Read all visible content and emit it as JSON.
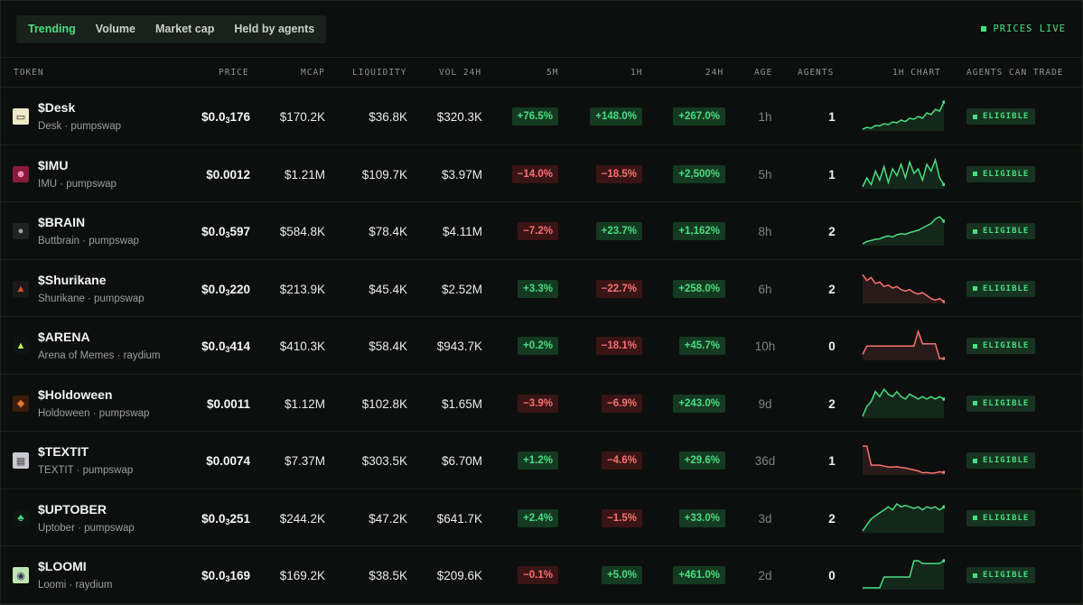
{
  "tabs": [
    "Trending",
    "Volume",
    "Market cap",
    "Held by agents"
  ],
  "active_tab": "Trending",
  "live_label": "PRICES LIVE",
  "columns": [
    "TOKEN",
    "PRICE",
    "MCAP",
    "LIQUIDITY",
    "VOL 24H",
    "5M",
    "1H",
    "24H",
    "AGE",
    "AGENTS",
    "1H CHART",
    "AGENTS CAN TRADE"
  ],
  "colors": {
    "positive": "#4ade80",
    "negative": "#f87171",
    "accent": "#4ade80"
  },
  "rows": [
    {
      "name": "$Desk",
      "sub": "Desk · pumpswap",
      "price_main": "$0.0",
      "price_sub": "3",
      "price_tail": "176",
      "mcap": "$170.2K",
      "liq": "$36.8K",
      "vol": "$320.3K",
      "m5": "+76.5%",
      "h1": "+148.0%",
      "h24": "+267.0%",
      "age": "1h",
      "agents": "1",
      "status": "ELIGIBLE",
      "icon": "monitor-icon",
      "trend": "up",
      "spark": [
        3,
        4,
        3.5,
        5,
        4.8,
        6,
        5.5,
        7,
        6.5,
        8,
        7.2,
        9,
        8.5,
        10,
        9,
        12,
        11,
        14,
        13,
        18
      ]
    },
    {
      "name": "$IMU",
      "sub": "IMU · pumpswap",
      "price_main": "$0.0012",
      "price_sub": "",
      "price_tail": "",
      "mcap": "$1.21M",
      "liq": "$109.7K",
      "vol": "$3.97M",
      "m5": "−14.0%",
      "h1": "−18.5%",
      "h24": "+2,500%",
      "age": "5h",
      "agents": "1",
      "status": "ELIGIBLE",
      "icon": "avatar-icon",
      "trend": "up",
      "spark": [
        5,
        9,
        6,
        12,
        8,
        14,
        7,
        13,
        10,
        15,
        9,
        16,
        11,
        13,
        8,
        15,
        12,
        17,
        9,
        6
      ]
    },
    {
      "name": "$BRAIN",
      "sub": "Buttbrain · pumpswap",
      "price_main": "$0.0",
      "price_sub": "3",
      "price_tail": "597",
      "mcap": "$584.8K",
      "liq": "$78.4K",
      "vol": "$4.11M",
      "m5": "−7.2%",
      "h1": "+23.7%",
      "h24": "+1,162%",
      "age": "8h",
      "agents": "2",
      "status": "ELIGIBLE",
      "icon": "brain-icon",
      "trend": "up",
      "spark": [
        2,
        3,
        3.5,
        4,
        4.2,
        5,
        5.5,
        5,
        6,
        6.5,
        6.2,
        7,
        7.5,
        8,
        9,
        10,
        11,
        13,
        14,
        12
      ]
    },
    {
      "name": "$Shurikane",
      "sub": "Shurikane · pumpswap",
      "price_main": "$0.0",
      "price_sub": "3",
      "price_tail": "220",
      "mcap": "$213.9K",
      "liq": "$45.4K",
      "vol": "$2.52M",
      "m5": "+3.3%",
      "h1": "−22.7%",
      "h24": "+258.0%",
      "age": "6h",
      "agents": "2",
      "status": "ELIGIBLE",
      "icon": "shuriken-icon",
      "trend": "down",
      "spark": [
        14,
        12,
        13,
        11,
        11.5,
        10,
        10.5,
        9.5,
        10,
        9,
        8.5,
        9,
        8,
        7.5,
        8,
        7,
        6,
        5.5,
        6,
        5
      ]
    },
    {
      "name": "$ARENA",
      "sub": "Arena of Memes · raydium",
      "price_main": "$0.0",
      "price_sub": "3",
      "price_tail": "414",
      "mcap": "$410.3K",
      "liq": "$58.4K",
      "vol": "$943.7K",
      "m5": "+0.2%",
      "h1": "−18.1%",
      "h24": "+45.7%",
      "age": "10h",
      "agents": "0",
      "status": "ELIGIBLE",
      "icon": "arena-icon",
      "trend": "down",
      "spark": [
        6,
        10,
        10,
        10,
        10,
        10,
        10,
        10,
        10,
        10,
        10,
        10,
        10,
        17,
        11,
        11,
        11,
        11,
        4,
        4
      ]
    },
    {
      "name": "$Holdoween",
      "sub": "Holdoween · pumpswap",
      "price_main": "$0.0011",
      "price_sub": "",
      "price_tail": "",
      "mcap": "$1.12M",
      "liq": "$102.8K",
      "vol": "$1.65M",
      "m5": "−3.9%",
      "h1": "−6.9%",
      "h24": "+243.0%",
      "age": "9d",
      "agents": "2",
      "status": "ELIGIBLE",
      "icon": "pumpkin-icon",
      "trend": "up",
      "spark": [
        4,
        8,
        10,
        14,
        12,
        15,
        13,
        12,
        14,
        12,
        11,
        13,
        12,
        11,
        12,
        11,
        12,
        11,
        12,
        11
      ]
    },
    {
      "name": "$TEXTIT",
      "sub": "TEXTIT · pumpswap",
      "price_main": "$0.0074",
      "price_sub": "",
      "price_tail": "",
      "mcap": "$7.37M",
      "liq": "$303.5K",
      "vol": "$6.70M",
      "m5": "+1.2%",
      "h1": "−4.6%",
      "h24": "+29.6%",
      "age": "36d",
      "agents": "1",
      "status": "ELIGIBLE",
      "icon": "cat-icon",
      "trend": "down",
      "spark": [
        18,
        18,
        8,
        8,
        8,
        7.5,
        7,
        7,
        7.2,
        6.8,
        6.5,
        6,
        5.5,
        5,
        4,
        4.2,
        3.8,
        4,
        4.5,
        4.2
      ]
    },
    {
      "name": "$UPTOBER",
      "sub": "Uptober · pumpswap",
      "price_main": "$0.0",
      "price_sub": "3",
      "price_tail": "251",
      "mcap": "$244.2K",
      "liq": "$47.2K",
      "vol": "$641.7K",
      "m5": "+2.4%",
      "h1": "−1.5%",
      "h24": "+33.0%",
      "age": "3d",
      "agents": "2",
      "status": "ELIGIBLE",
      "icon": "frog-icon",
      "trend": "up",
      "spark": [
        4,
        6,
        8,
        9,
        10,
        11,
        12,
        11,
        13,
        12,
        12.5,
        12,
        11.5,
        12,
        11,
        12,
        11.5,
        12,
        11,
        12
      ]
    },
    {
      "name": "$LOOMI",
      "sub": "Loomi · raydium",
      "price_main": "$0.0",
      "price_sub": "3",
      "price_tail": "169",
      "mcap": "$169.2K",
      "liq": "$38.5K",
      "vol": "$209.6K",
      "m5": "−0.1%",
      "h1": "+5.0%",
      "h24": "+461.0%",
      "age": "2d",
      "agents": "0",
      "status": "ELIGIBLE",
      "icon": "loomi-icon",
      "trend": "up",
      "spark": [
        2,
        2,
        2,
        2,
        2,
        6,
        6,
        6,
        6,
        6,
        6,
        6,
        12,
        12,
        11,
        11,
        11,
        11,
        11,
        12
      ]
    }
  ]
}
